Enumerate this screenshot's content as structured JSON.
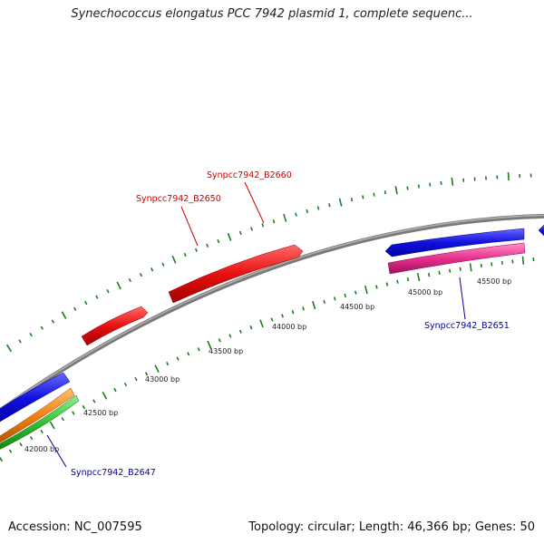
{
  "title": "Synechococcus elongatus PCC 7942 plasmid 1, complete sequenc...",
  "footer": {
    "accession": "Accession: NC_007595",
    "stats": "Topology: circular; Length: 46,366 bp; Genes: 50"
  },
  "colors": {
    "backbone": "#888888",
    "tick": "#1a7f1a",
    "forward_gene": "#e81010",
    "reverse_gene": "#1010e0",
    "pink_gene": "#e8308c",
    "orange_gene": "#f08010",
    "green_gene": "#30c030",
    "forward_label": "#cc0000",
    "reverse_label": "#000099"
  },
  "scale": {
    "labels": [
      "42000 bp",
      "42500 bp",
      "43000 bp",
      "43500 bp",
      "44000 bp",
      "44500 bp",
      "45000 bp",
      "45500 bp"
    ]
  },
  "gene_labels": [
    {
      "text": "Synpcc7942_B2660",
      "strand": "forward"
    },
    {
      "text": "Synpcc7942_B2650",
      "strand": "forward"
    },
    {
      "text": "Synpcc7942_B2651",
      "strand": "reverse"
    },
    {
      "text": "Synpcc7942_B2647",
      "strand": "reverse"
    }
  ]
}
